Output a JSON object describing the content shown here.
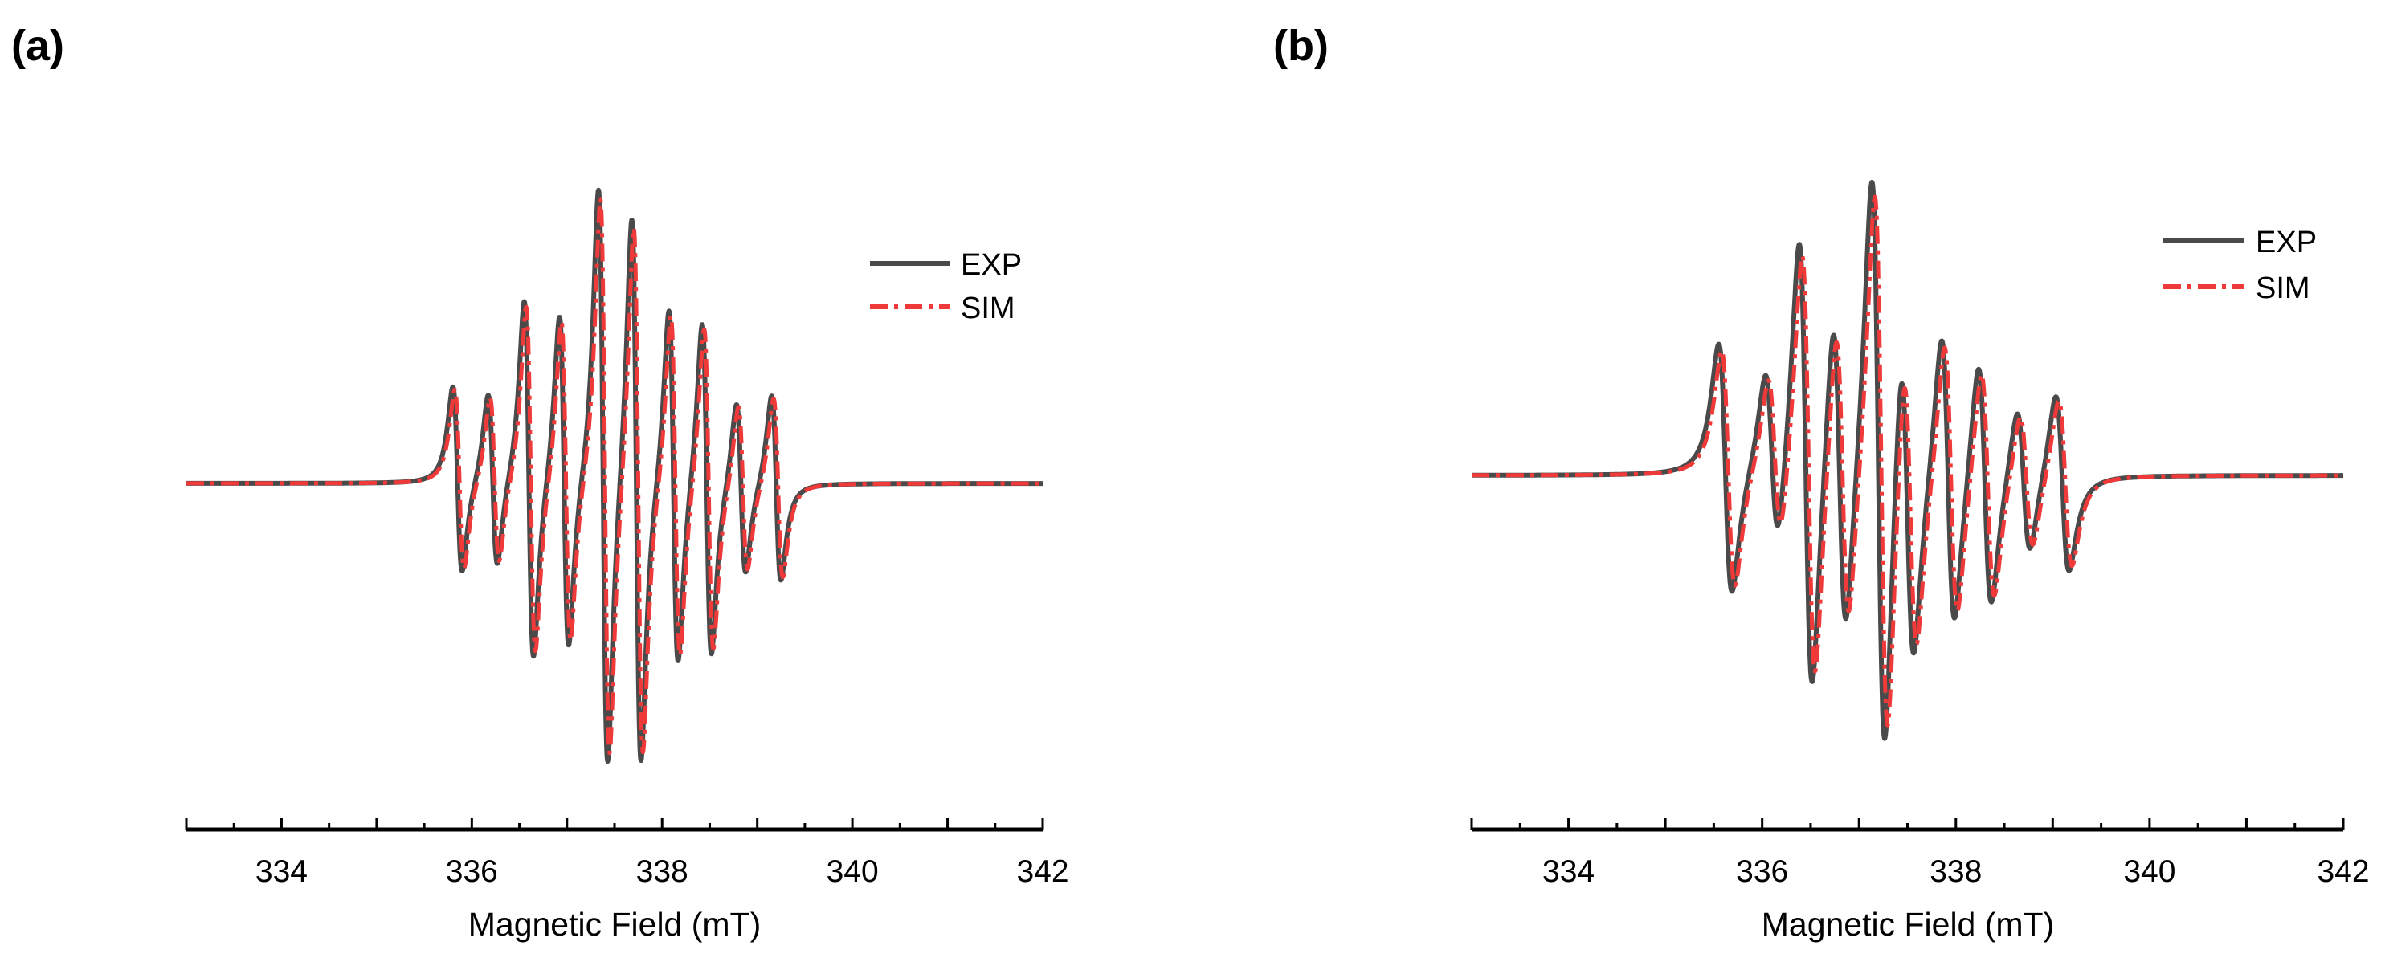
{
  "chart_data": [
    {
      "panel_label": "(a)",
      "type": "line",
      "xlabel": "Magnetic Field (mT)",
      "ylabel": "",
      "xlim": [
        333,
        342
      ],
      "ylim": [
        -1.0,
        1.0
      ],
      "xticks": [
        334,
        336,
        338,
        340,
        342
      ],
      "yaxis_visible": false,
      "grid": false,
      "legend_position": "top-right",
      "baseline_y": 0.0,
      "lines": [
        {
          "center": 335.85,
          "amp": 0.32
        },
        {
          "center": 336.22,
          "amp": 0.3
        },
        {
          "center": 336.6,
          "amp": 0.62
        },
        {
          "center": 336.97,
          "amp": 0.58
        },
        {
          "center": 337.38,
          "amp": 1.0
        },
        {
          "center": 337.73,
          "amp": 0.95
        },
        {
          "center": 338.12,
          "amp": 0.62
        },
        {
          "center": 338.47,
          "amp": 0.58
        },
        {
          "center": 338.83,
          "amp": 0.3
        },
        {
          "center": 339.2,
          "amp": 0.32
        }
      ],
      "linewidth_mT": 0.085,
      "series": [
        {
          "name": "EXP",
          "color": "#4a4a4a",
          "style": "solid",
          "scale": 1.0,
          "shift": 0.0
        },
        {
          "name": "SIM",
          "color": "#f03a3a",
          "style": "dashdot",
          "scale": 0.97,
          "shift": 0.02
        }
      ]
    },
    {
      "panel_label": "(b)",
      "type": "line",
      "xlabel": "Magnetic Field (mT)",
      "ylabel": "",
      "xlim": [
        333,
        342
      ],
      "ylim": [
        -1.0,
        1.0
      ],
      "xticks": [
        334,
        336,
        338,
        340,
        342
      ],
      "yaxis_visible": false,
      "grid": false,
      "legend_position": "top-right",
      "baseline_y": 0.0,
      "lines": [
        {
          "center": 335.62,
          "amp": 0.42
        },
        {
          "center": 336.1,
          "amp": 0.3
        },
        {
          "center": 336.45,
          "amp": 0.78
        },
        {
          "center": 336.8,
          "amp": 0.55
        },
        {
          "center": 337.2,
          "amp": 1.0
        },
        {
          "center": 337.5,
          "amp": 0.55
        },
        {
          "center": 337.92,
          "amp": 0.5
        },
        {
          "center": 338.3,
          "amp": 0.42
        },
        {
          "center": 338.7,
          "amp": 0.25
        },
        {
          "center": 339.1,
          "amp": 0.3
        }
      ],
      "linewidth_mT": 0.12,
      "series": [
        {
          "name": "EXP",
          "color": "#4a4a4a",
          "style": "solid",
          "scale": 1.0,
          "shift": 0.0
        },
        {
          "name": "SIM",
          "color": "#f03a3a",
          "style": "dashdot",
          "scale": 0.95,
          "shift": 0.03
        }
      ]
    }
  ]
}
